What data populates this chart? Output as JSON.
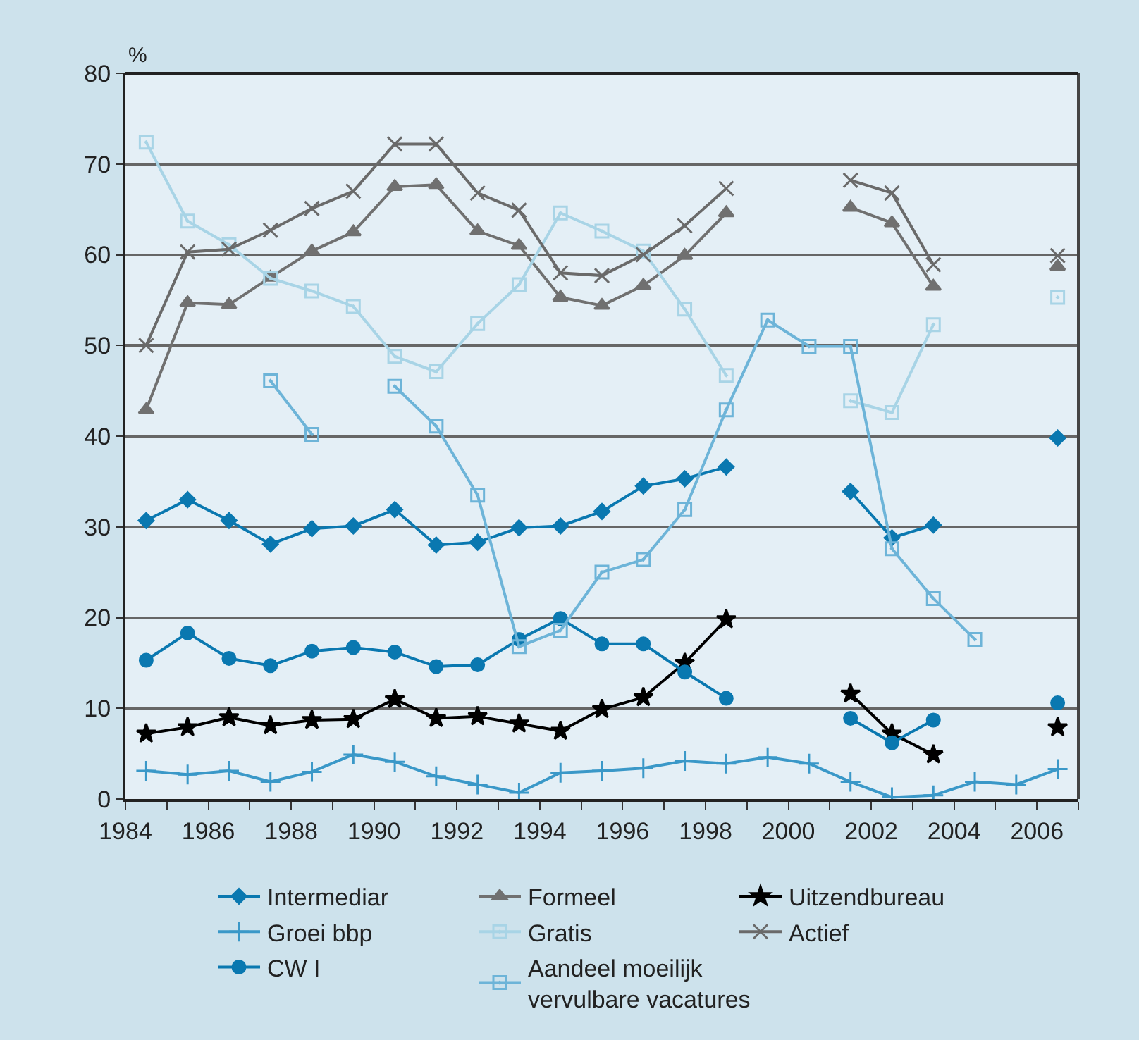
{
  "chart_data": {
    "type": "line",
    "ylabel": "%",
    "x": [
      1984.5,
      1985.5,
      1986.5,
      1987.5,
      1988.5,
      1989.5,
      1990.5,
      1991.5,
      1992.5,
      1993.5,
      1994.5,
      1995.5,
      1996.5,
      1997.5,
      1998.5,
      1999.5,
      2000.5,
      2001.5,
      2002.5,
      2003.5,
      2004.5,
      2005.5,
      2006.5
    ],
    "xlim": [
      1984,
      2007
    ],
    "xticks": [
      1984,
      {
        "value": 1985,
        "label": null
      },
      1986,
      {
        "value": 1987,
        "label": null
      },
      1988,
      {
        "value": 1989,
        "label": null
      },
      1990,
      {
        "value": 1991,
        "label": null
      },
      1992,
      {
        "value": 1993,
        "label": null
      },
      1994,
      {
        "value": 1995,
        "label": null
      },
      1996,
      {
        "value": 1997,
        "label": null
      },
      1998,
      {
        "value": 1999,
        "label": null
      },
      2000,
      {
        "value": 2001,
        "label": null
      },
      2002,
      {
        "value": 2003,
        "label": null
      },
      2004,
      {
        "value": 2005,
        "label": null
      },
      2006,
      {
        "value": 2007,
        "label": null
      }
    ],
    "ylim": [
      0,
      80
    ],
    "yticks": [
      0,
      10,
      20,
      30,
      40,
      50,
      60,
      70,
      80
    ],
    "grid": "y",
    "legend": "bottom",
    "line_style": "solid",
    "series": [
      {
        "name": "Intermediar",
        "color": "#0a78b0",
        "marker": "diamond",
        "values": [
          30.7,
          33.0,
          30.7,
          28.1,
          29.8,
          30.1,
          31.9,
          28.0,
          28.3,
          29.9,
          30.1,
          31.7,
          34.5,
          35.3,
          36.6,
          null,
          null,
          33.9,
          28.8,
          30.2,
          null,
          null,
          39.8
        ]
      },
      {
        "name": "Formeel",
        "color": "#707070",
        "marker": "triangle",
        "values": [
          42.9,
          54.7,
          54.5,
          57.5,
          60.4,
          62.5,
          67.5,
          67.7,
          62.6,
          61.0,
          55.3,
          54.4,
          56.6,
          59.9,
          64.6,
          null,
          null,
          65.2,
          63.5,
          56.5,
          null,
          null,
          58.7
        ]
      },
      {
        "name": "Uitzendbureau",
        "color": "#000000",
        "marker": "star",
        "values": [
          7.2,
          7.9,
          9.0,
          8.1,
          8.7,
          8.8,
          11.0,
          8.9,
          9.1,
          8.3,
          7.5,
          9.9,
          11.2,
          15.0,
          19.8,
          null,
          null,
          11.6,
          7.2,
          4.9,
          null,
          null,
          7.9
        ]
      },
      {
        "name": "Groei bbp",
        "color": "#3a98c8",
        "marker": "cross",
        "values": [
          3.1,
          2.7,
          3.1,
          1.9,
          3.0,
          4.9,
          4.1,
          2.5,
          1.6,
          0.7,
          2.9,
          3.1,
          3.4,
          4.2,
          3.9,
          4.6,
          3.9,
          1.9,
          0.2,
          0.4,
          1.9,
          1.6,
          3.3
        ]
      },
      {
        "name": "Gratis",
        "color": "#a8d4e6",
        "marker": "square",
        "values": [
          72.4,
          63.7,
          61.1,
          57.4,
          56.0,
          54.3,
          48.8,
          47.1,
          52.4,
          56.7,
          64.6,
          62.6,
          60.4,
          54.0,
          46.7,
          null,
          null,
          43.9,
          42.6,
          52.3,
          null,
          null,
          55.3
        ]
      },
      {
        "name": "Actief",
        "color": "#6a6a6a",
        "marker": "x",
        "values": [
          50.0,
          60.3,
          60.6,
          62.7,
          65.1,
          67.0,
          72.2,
          72.2,
          66.8,
          64.9,
          58.0,
          57.7,
          60.0,
          63.2,
          67.3,
          null,
          null,
          68.2,
          66.8,
          58.9,
          null,
          null,
          59.9
        ]
      },
      {
        "name": "CW I",
        "color": "#0a78b0",
        "marker": "circle",
        "values": [
          15.3,
          18.3,
          15.5,
          14.7,
          16.3,
          16.7,
          16.2,
          14.6,
          14.8,
          17.6,
          19.9,
          17.1,
          17.1,
          14.0,
          11.1,
          null,
          null,
          8.9,
          6.2,
          8.7,
          null,
          null,
          10.6
        ]
      },
      {
        "name": "Aandeel moeilijk vervulbare vacatures",
        "color": "#6db4d8",
        "marker": "square",
        "values": [
          null,
          null,
          null,
          46.1,
          40.2,
          null,
          45.5,
          41.1,
          33.5,
          16.8,
          18.6,
          25.0,
          26.4,
          31.9,
          42.9,
          52.8,
          49.9,
          49.9,
          27.6,
          22.1,
          17.6,
          null,
          null
        ]
      }
    ]
  }
}
